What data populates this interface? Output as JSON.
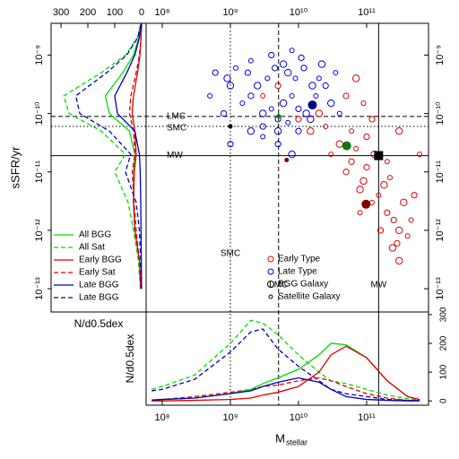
{
  "chart_data": [
    {
      "type": "scatter",
      "x_label": {
        "main": "M",
        "sub": "stellar"
      },
      "y_label": "sSFR/yr",
      "log_x": true,
      "log_y": true,
      "xlim": [
        58000000.0,
        810000000000.0
      ],
      "xticks": [
        {
          "value": 100000000.0,
          "label": "10⁸"
        },
        {
          "value": 1000000000.0,
          "label": "10⁹"
        },
        {
          "value": 10000000000.0,
          "label": "10¹⁰"
        },
        {
          "value": 100000000000.0,
          "label": "10¹¹"
        }
      ],
      "ylim": [
        4e-14,
        3.5e-09
      ],
      "yticks": [
        {
          "value": 1e-09,
          "label": "10⁻⁹"
        },
        {
          "value": 1e-10,
          "label": "10⁻¹⁰"
        },
        {
          "value": 1e-11,
          "label": "10⁻¹¹"
        },
        {
          "value": 1e-12,
          "label": "10⁻¹²"
        },
        {
          "value": 1e-13,
          "label": "10⁻¹³"
        }
      ],
      "series": [
        {
          "name": "Early Type",
          "color": "#e00000",
          "x": [
            30000000000.0,
            50000000000.0,
            80000000000.0,
            120000000000.0,
            200000000000.0,
            300000000000.0,
            400000000000.0,
            60000000000.0,
            90000000000.0,
            150000000000.0,
            250000000000.0,
            350000000000.0,
            70000000000.0,
            100000000000.0,
            180000000000.0,
            220000000000.0,
            500000000000.0,
            40000000000.0,
            60000000000.0,
            100000000000.0,
            130000000000.0,
            200000000000.0,
            280000000000.0,
            300000000000.0,
            80000000000.0,
            160000000000.0,
            240000000000.0,
            450000000000.0,
            10000000000.0,
            20000000000.0,
            3000000000.0,
            5000000000.0,
            15000000000.0,
            25000000000.0,
            50000000000.0,
            70000000000.0,
            90000000000.0,
            120000000000.0,
            300000000000.0,
            600000000000.0
          ],
          "y": [
            2e-11,
            1e-11,
            5e-12,
            3e-12,
            2e-12,
            1e-12,
            8e-13,
            1.5e-11,
            7e-12,
            4e-12,
            1.5e-12,
            3e-12,
            2.5e-11,
            1.2e-11,
            6e-12,
            8e-12,
            4e-12,
            3e-11,
            5e-11,
            4e-11,
            2e-11,
            1.5e-11,
            6e-13,
            3e-13,
            2e-12,
            1e-12,
            5e-13,
            1.5e-12,
            8e-11,
            1e-10,
            2e-10,
            3e-10,
            5e-11,
            6e-11,
            2e-10,
            4e-10,
            1.5e-10,
            8e-11,
            5e-11,
            2e-11
          ]
        },
        {
          "name": "Late Type",
          "color": "#0000e0",
          "x": [
            500000000.0,
            800000000.0,
            1000000000.0,
            1500000000.0,
            2000000000.0,
            3000000000.0,
            4000000000.0,
            5000000000.0,
            6000000000.0,
            8000000000.0,
            10000000000.0,
            13000000000.0,
            18000000000.0,
            25000000000.0,
            30000000000.0,
            40000000000.0,
            600000000.0,
            900000000.0,
            1200000000.0,
            1800000000.0,
            2500000000.0,
            3500000000.0,
            4500000000.0,
            7000000000.0,
            9000000000.0,
            12000000000.0,
            16000000000.0,
            20000000000.0,
            3000000000.0,
            5000000000.0,
            7000000000.0,
            10000000000.0,
            15000000000.0,
            2000000000.0,
            4000000000.0,
            6000000000.0,
            8000000000.0,
            11000000000.0,
            22000000000.0,
            35000000000.0,
            1000000000.0,
            2000000000.0,
            3000000000.0,
            5000000000.0,
            8000000000.0
          ],
          "y": [
            2e-10,
            1e-10,
            3e-10,
            1.5e-10,
            2e-10,
            1e-10,
            1.2e-10,
            8e-11,
            1.5e-10,
            2e-10,
            1.2e-10,
            1e-10,
            2e-10,
            3e-10,
            1.5e-10,
            1e-10,
            5e-10,
            4e-10,
            6e-10,
            5e-10,
            3e-10,
            4e-10,
            6e-10,
            5e-10,
            4e-10,
            6e-10,
            3e-10,
            4e-10,
            6e-11,
            5e-11,
            7e-11,
            5e-11,
            8e-11,
            8e-10,
            1e-09,
            7e-10,
            1.2e-09,
            9e-10,
            7e-10,
            5e-10,
            3e-11,
            5e-11,
            4e-11,
            3e-11,
            2e-11
          ]
        }
      ],
      "marker_legend": [
        "BGG Galaxy",
        "Satellite Galaxy"
      ],
      "highlights": {
        "x": [
          16000000000.0,
          51000000000.0,
          98000000000.0,
          150000000000.0,
          1000000000.0,
          5100000000.0,
          6700000000.0
        ],
        "y": [
          1.4e-10,
          2.8e-11,
          2.8e-12,
          1.9e-11,
          6e-11,
          9e-11,
          1.6e-11
        ],
        "colors": [
          "#000080",
          "#0a7a0a",
          "#800000",
          "#000000",
          "#000000",
          "#0a7a0a",
          "#800000"
        ],
        "markers": [
          "big",
          "big",
          "big",
          "square",
          "small",
          "small",
          "small"
        ]
      },
      "ref_lines": {
        "x": [
          {
            "label": "SMC",
            "value": 1000000000.0,
            "dash": "dotted"
          },
          {
            "label": "LMC",
            "value": 5100000000.0,
            "dash": "dashed"
          },
          {
            "label": "MW",
            "value": 150000000000.0,
            "dash": "solid"
          }
        ],
        "y": [
          {
            "label": "LMC",
            "value": 8.9e-11,
            "dash": "dashed"
          },
          {
            "label": "SMC",
            "value": 6e-11,
            "dash": "dotted"
          },
          {
            "label": "MW",
            "value": 1.9e-11,
            "dash": "solid"
          }
        ]
      }
    },
    {
      "type": "line",
      "orientation": "horizontal",
      "x_label": "N/d0.5dex",
      "xlim": [
        337,
        -17
      ],
      "xticks": [
        300,
        200,
        100,
        0
      ],
      "y": [
        1e-13,
        3e-13,
        1e-12,
        3e-12,
        1e-11,
        2e-11,
        5e-11,
        1e-10,
        2e-10,
        5e-10,
        1e-09,
        2e-09,
        3.5e-09
      ],
      "series": [
        {
          "name": "All BGG",
          "color": "#00dd00",
          "dash": "solid",
          "values": [
            3,
            8,
            25,
            30,
            30,
            25,
            45,
            120,
            135,
            70,
            30,
            10,
            2
          ]
        },
        {
          "name": "All Sat",
          "color": "#00dd00",
          "dash": "dashed",
          "values": [
            4,
            12,
            30,
            50,
            100,
            60,
            150,
            270,
            290,
            150,
            60,
            15,
            3
          ]
        },
        {
          "name": "Early BGG",
          "color": "#e00000",
          "dash": "solid",
          "values": [
            3,
            8,
            25,
            30,
            27,
            20,
            25,
            35,
            30,
            15,
            6,
            2,
            0
          ]
        },
        {
          "name": "Early Sat",
          "color": "#e00000",
          "dash": "dashed",
          "values": [
            2,
            8,
            20,
            28,
            35,
            25,
            30,
            45,
            40,
            20,
            8,
            2,
            0
          ]
        },
        {
          "name": "Late BGG",
          "color": "#0000c0",
          "dash": "solid",
          "values": [
            0,
            1,
            2,
            3,
            5,
            8,
            25,
            90,
            100,
            55,
            25,
            8,
            1
          ]
        },
        {
          "name": "Late BGG",
          "color": "#0000c0",
          "dash": "dashed",
          "values": [
            1,
            3,
            8,
            20,
            60,
            40,
            120,
            230,
            245,
            130,
            55,
            14,
            2
          ]
        }
      ],
      "legend": "lower left"
    },
    {
      "type": "line",
      "y_label": "N/d0.5dex",
      "log_x": true,
      "xlim": [
        58000000.0,
        810000000000.0
      ],
      "xticks": [
        {
          "value": 100000000.0,
          "label": "10⁸"
        },
        {
          "value": 1000000000.0,
          "label": "10⁹"
        },
        {
          "value": 10000000000.0,
          "label": "10¹⁰"
        },
        {
          "value": 100000000000.0,
          "label": "10¹¹"
        }
      ],
      "ylim": [
        -15,
        309
      ],
      "yticks": [
        0,
        100,
        200,
        300
      ],
      "x": [
        70000000.0,
        100000000.0,
        300000000.0,
        1000000000.0,
        2000000000.0,
        3000000000.0,
        5000000000.0,
        10000000000.0,
        20000000000.0,
        30000000000.0,
        50000000000.0,
        100000000000.0,
        200000000000.0,
        400000000000.0,
        600000000000.0
      ],
      "series": [
        {
          "color": "#00dd00",
          "dash": "dashed",
          "values": [
            40,
            50,
            90,
            200,
            280,
            270,
            230,
            160,
            100,
            70,
            60,
            40,
            20,
            8,
            4
          ]
        },
        {
          "color": "#0000c0",
          "dash": "dashed",
          "values": [
            35,
            40,
            75,
            170,
            240,
            250,
            180,
            120,
            70,
            40,
            25,
            15,
            5,
            2,
            1
          ]
        },
        {
          "color": "#e00000",
          "dash": "dashed",
          "values": [
            3,
            5,
            15,
            30,
            40,
            50,
            55,
            70,
            80,
            70,
            50,
            25,
            10,
            2,
            1
          ]
        },
        {
          "color": "#00dd00",
          "dash": "solid",
          "values": [
            3,
            5,
            10,
            25,
            40,
            60,
            80,
            110,
            160,
            200,
            195,
            150,
            70,
            15,
            5
          ]
        },
        {
          "color": "#e00000",
          "dash": "solid",
          "values": [
            0,
            0,
            2,
            5,
            10,
            20,
            30,
            50,
            100,
            160,
            190,
            150,
            70,
            15,
            5
          ]
        },
        {
          "color": "#0000c0",
          "dash": "solid",
          "values": [
            3,
            5,
            10,
            25,
            35,
            50,
            65,
            80,
            65,
            40,
            15,
            5,
            2,
            0,
            0
          ]
        }
      ]
    }
  ]
}
